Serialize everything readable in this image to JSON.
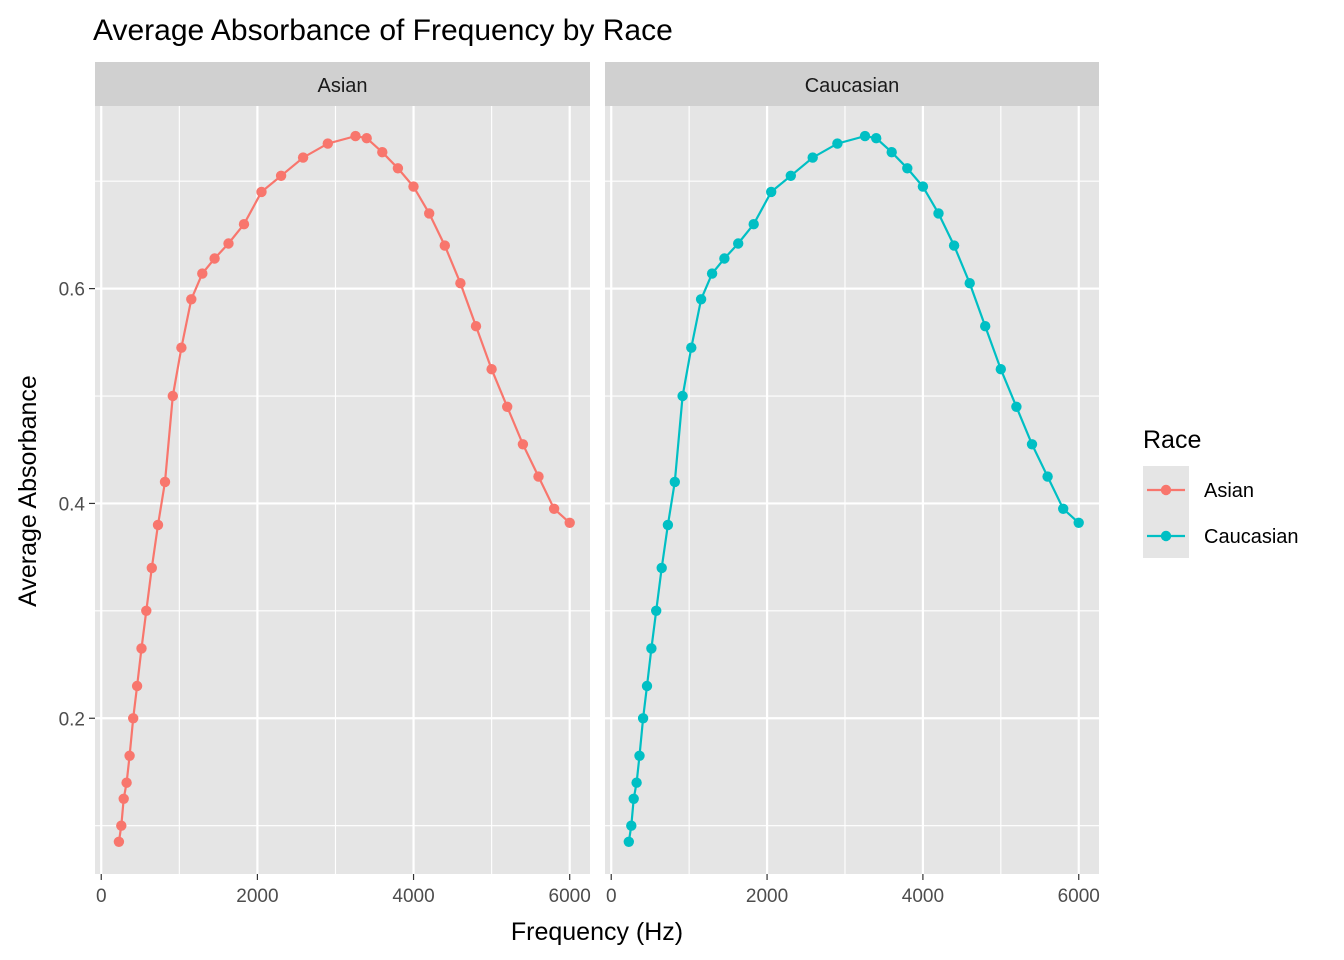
{
  "colors": {
    "Asian": "#F8766D",
    "Caucasian": "#00BFC4",
    "panel_bg": "#E5E5E5",
    "strip_bg": "#D0D0D0",
    "grid": "#FFFFFF"
  },
  "chart_data": {
    "type": "line",
    "title": "Average Absorbance of Frequency by Race",
    "xlabel": "Frequency (Hz)",
    "ylabel": "Average Absorbance",
    "xlim": [
      -80,
      6260
    ],
    "ylim": [
      0.055,
      0.77
    ],
    "xticks": [
      0,
      2000,
      4000,
      6000
    ],
    "xtick_labels": [
      "0",
      "2000",
      "4000",
      "6000"
    ],
    "yticks": [
      0.2,
      0.4,
      0.6
    ],
    "ytick_labels": [
      "0.2",
      "0.4",
      "0.6"
    ],
    "grid": true,
    "markers": true,
    "legend": {
      "title": "Race",
      "position": "right",
      "entries": [
        "Asian",
        "Caucasian"
      ]
    },
    "facets": [
      {
        "label": "Asian",
        "series": "Asian",
        "x": [
          226,
          257,
          288,
          325,
          363,
          409,
          459,
          515,
          577,
          648,
          727,
          816,
          916,
          1027,
          1153,
          1294,
          1452,
          1630,
          1829,
          2053,
          2304,
          2586,
          2902,
          3257,
          3400,
          3600,
          3800,
          4000,
          4200,
          4400,
          4600,
          4800,
          5000,
          5200,
          5400,
          5600,
          5800,
          6000
        ],
        "y": [
          0.085,
          0.1,
          0.125,
          0.14,
          0.165,
          0.2,
          0.23,
          0.265,
          0.3,
          0.34,
          0.38,
          0.42,
          0.5,
          0.545,
          0.59,
          0.614,
          0.628,
          0.642,
          0.66,
          0.69,
          0.705,
          0.722,
          0.735,
          0.742,
          0.74,
          0.727,
          0.712,
          0.695,
          0.67,
          0.64,
          0.605,
          0.565,
          0.525,
          0.49,
          0.455,
          0.425,
          0.395,
          0.382
        ]
      },
      {
        "label": "Caucasian",
        "series": "Caucasian",
        "x": [
          226,
          257,
          288,
          325,
          363,
          409,
          459,
          515,
          577,
          648,
          727,
          816,
          916,
          1027,
          1153,
          1294,
          1452,
          1630,
          1829,
          2053,
          2304,
          2586,
          2902,
          3257,
          3400,
          3600,
          3800,
          4000,
          4200,
          4400,
          4600,
          4800,
          5000,
          5200,
          5400,
          5600,
          5800,
          6000
        ],
        "y": [
          0.085,
          0.1,
          0.125,
          0.14,
          0.165,
          0.2,
          0.23,
          0.265,
          0.3,
          0.34,
          0.38,
          0.42,
          0.5,
          0.545,
          0.59,
          0.614,
          0.628,
          0.642,
          0.66,
          0.69,
          0.705,
          0.722,
          0.735,
          0.742,
          0.74,
          0.727,
          0.712,
          0.695,
          0.67,
          0.64,
          0.605,
          0.565,
          0.525,
          0.49,
          0.455,
          0.425,
          0.395,
          0.382
        ]
      }
    ]
  }
}
